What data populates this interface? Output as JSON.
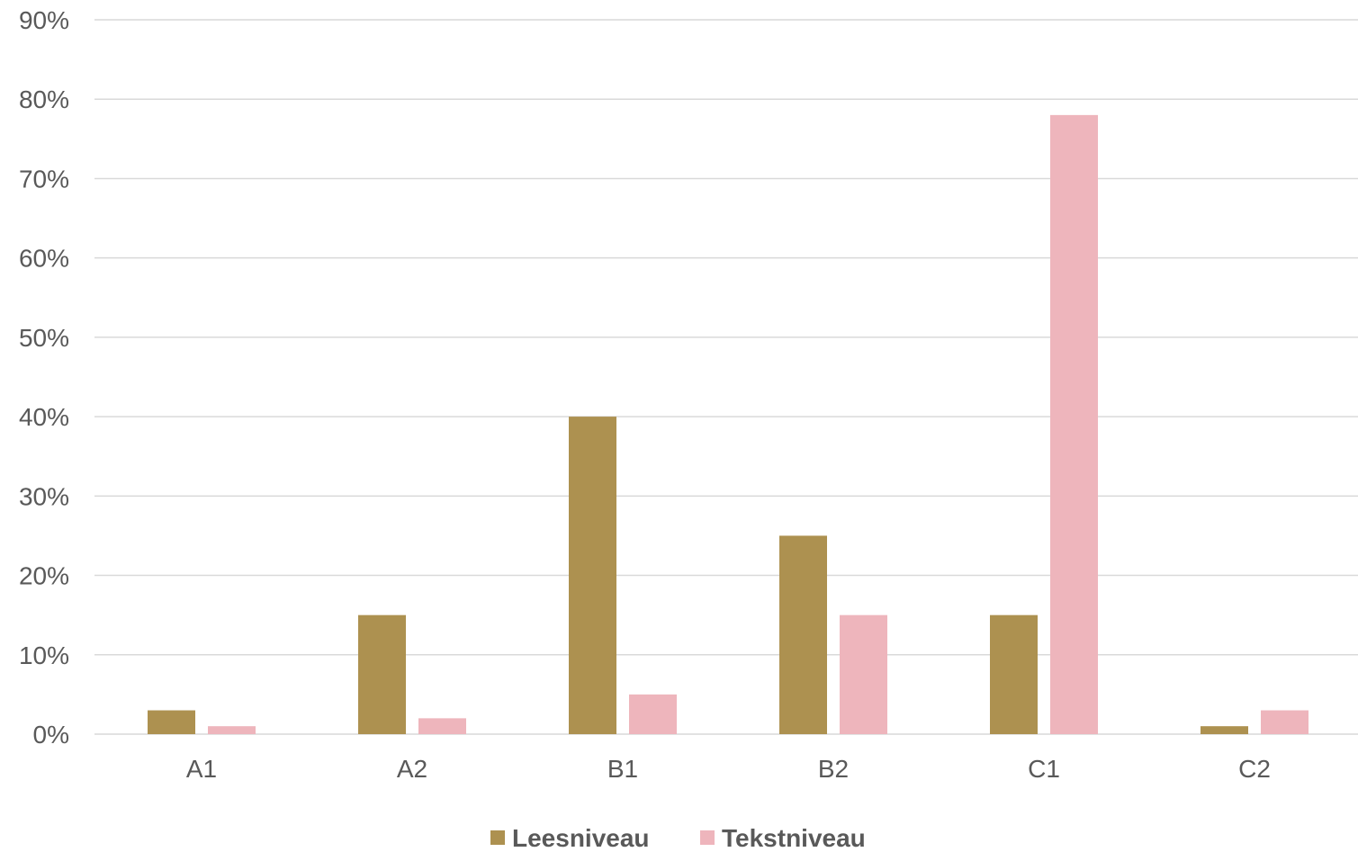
{
  "chart_data": {
    "type": "bar",
    "categories": [
      "A1",
      "A2",
      "B1",
      "B2",
      "C1",
      "C2"
    ],
    "series": [
      {
        "name": "Leesniveau",
        "color": "#ad9150",
        "values": [
          3,
          15,
          40,
          25,
          15,
          1
        ]
      },
      {
        "name": "Tekstniveau",
        "color": "#eeb5bc",
        "values": [
          1,
          2,
          5,
          15,
          78,
          3
        ]
      }
    ],
    "y_unit": "%",
    "ylim": [
      0,
      90
    ],
    "y_ticks": [
      0,
      10,
      20,
      30,
      40,
      50,
      60,
      70,
      80,
      90
    ],
    "y_tick_labels": [
      "0%",
      "10%",
      "20%",
      "30%",
      "40%",
      "50%",
      "60%",
      "70%",
      "80%",
      "90%"
    ],
    "grid": "horizontal",
    "legend_position": "bottom-center"
  }
}
